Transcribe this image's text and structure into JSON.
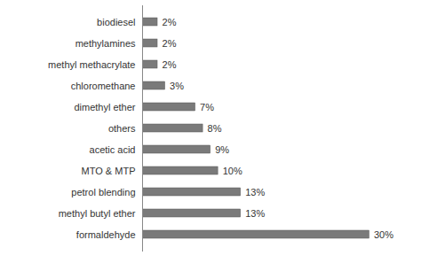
{
  "chart_data": {
    "type": "bar",
    "orientation": "horizontal",
    "categories": [
      "biodiesel",
      "methylamines",
      "methyl methacrylate",
      "chloromethane",
      "dimethyl ether",
      "others",
      "acetic acid",
      "MTO & MTP",
      "petrol blending",
      "methyl butyl ether",
      "formaldehyde"
    ],
    "values": [
      2,
      2,
      2,
      3,
      7,
      8,
      9,
      10,
      13,
      13,
      30
    ],
    "value_labels": [
      "2%",
      "2%",
      "2%",
      "3%",
      "7%",
      "8%",
      "9%",
      "10%",
      "13%",
      "13%",
      "30%"
    ],
    "color": "#7a7a7a",
    "xlim": [
      0,
      35
    ],
    "data_labels": true,
    "tick_labels": "y",
    "grid": false
  }
}
